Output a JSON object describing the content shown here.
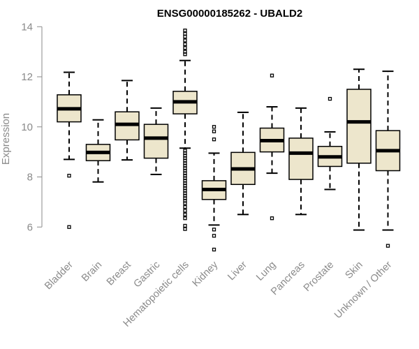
{
  "chart_data": {
    "type": "boxplot",
    "title": "ENSG00000185262 - UBALD2",
    "ylabel": "Expression",
    "xlabel": "",
    "ylim": [
      4.9,
      14.1
    ],
    "yticks": [
      6,
      8,
      10,
      12,
      14
    ],
    "box_fill": "#ede6cc",
    "box_stroke": "#000000",
    "axis_color": "#8a8a8a",
    "categories": [
      "Bladder",
      "Brain",
      "Breast",
      "Gastric",
      "Hematopoietic cells",
      "Kidney",
      "Liver",
      "Lung",
      "Pancreas",
      "Prostate",
      "Skin",
      "Unknown / Other"
    ],
    "boxes": [
      {
        "category": "Bladder",
        "whisker_low": 8.7,
        "q1": 10.2,
        "median": 10.72,
        "q3": 11.28,
        "whisker_high": 12.18,
        "outliers": [
          8.05,
          6.0
        ]
      },
      {
        "category": "Brain",
        "whisker_low": 7.8,
        "q1": 8.65,
        "median": 8.98,
        "q3": 9.3,
        "whisker_high": 10.28,
        "outliers": []
      },
      {
        "category": "Breast",
        "whisker_low": 8.68,
        "q1": 9.48,
        "median": 10.1,
        "q3": 10.6,
        "whisker_high": 11.85,
        "outliers": []
      },
      {
        "category": "Gastric",
        "whisker_low": 8.1,
        "q1": 8.75,
        "median": 9.55,
        "q3": 10.1,
        "whisker_high": 10.75,
        "outliers": []
      },
      {
        "category": "Hematopoietic cells",
        "whisker_low": 9.15,
        "q1": 10.52,
        "median": 11.0,
        "q3": 11.42,
        "whisker_high": 12.65,
        "outliers": [
          13.85,
          13.72,
          13.6,
          13.45,
          13.3,
          13.15,
          13.0,
          12.9,
          9.05,
          8.95,
          8.85,
          8.75,
          8.65,
          8.55,
          8.45,
          8.35,
          8.25,
          8.15,
          8.05,
          7.95,
          7.85,
          7.75,
          7.65,
          7.55,
          7.45,
          7.35,
          7.25,
          7.15,
          7.05,
          6.95,
          6.8,
          6.65,
          6.5,
          6.35,
          6.05,
          5.92
        ]
      },
      {
        "category": "Kidney",
        "whisker_low": 6.08,
        "q1": 7.1,
        "median": 7.5,
        "q3": 7.85,
        "whisker_high": 8.95,
        "outliers": [
          10.0,
          9.82,
          9.5,
          5.9,
          5.65,
          5.1
        ]
      },
      {
        "category": "Liver",
        "whisker_low": 6.5,
        "q1": 7.7,
        "median": 8.32,
        "q3": 8.98,
        "whisker_high": 10.58,
        "outliers": []
      },
      {
        "category": "Lung",
        "whisker_low": 8.15,
        "q1": 9.0,
        "median": 9.45,
        "q3": 9.95,
        "whisker_high": 10.8,
        "outliers": [
          12.05,
          6.35
        ]
      },
      {
        "category": "Pancreas",
        "whisker_low": 6.5,
        "q1": 7.9,
        "median": 8.95,
        "q3": 9.55,
        "whisker_high": 10.75,
        "outliers": []
      },
      {
        "category": "Prostate",
        "whisker_low": 7.5,
        "q1": 8.42,
        "median": 8.8,
        "q3": 9.22,
        "whisker_high": 9.8,
        "outliers": [
          11.12
        ]
      },
      {
        "category": "Skin",
        "whisker_low": 5.88,
        "q1": 8.55,
        "median": 10.2,
        "q3": 11.5,
        "whisker_high": 12.3,
        "outliers": []
      },
      {
        "category": "Unknown / Other",
        "whisker_low": 5.88,
        "q1": 8.25,
        "median": 9.05,
        "q3": 9.85,
        "whisker_high": 12.22,
        "outliers": [
          5.25
        ]
      }
    ]
  }
}
